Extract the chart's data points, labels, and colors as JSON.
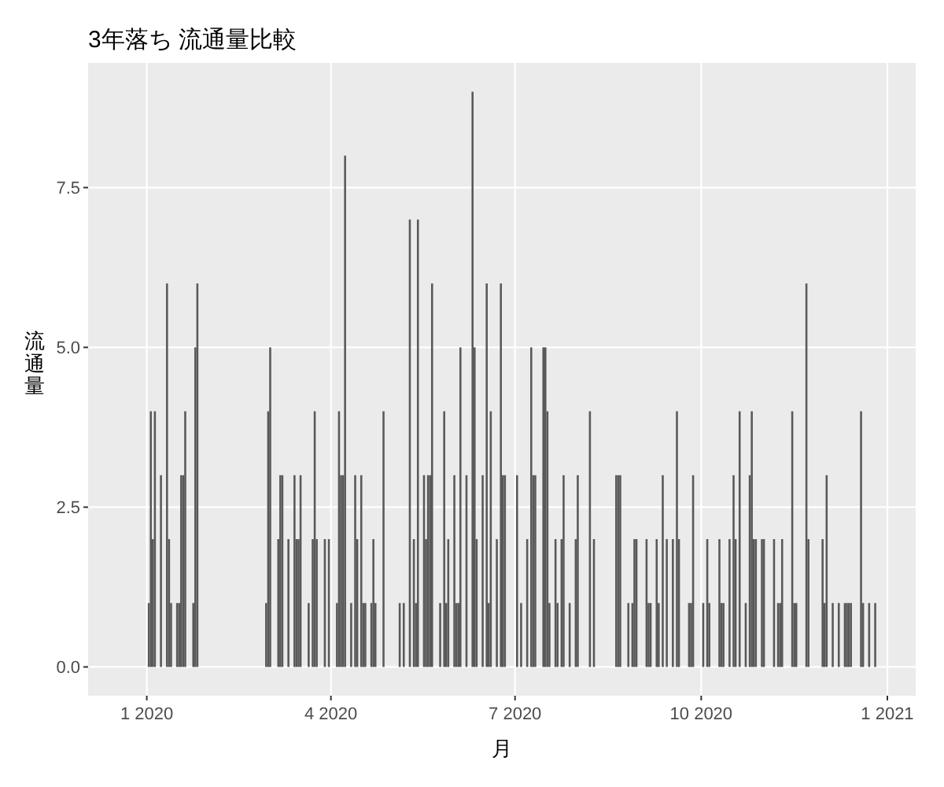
{
  "chart_data": {
    "type": "bar",
    "title": "3年落ち 流通量比較",
    "xlabel": "月",
    "ylabel": "流通量",
    "x": [
      "2020-01-02",
      "2020-01-03",
      "2020-01-04",
      "2020-01-05",
      "2020-01-08",
      "2020-01-11",
      "2020-01-12",
      "2020-01-13",
      "2020-01-16",
      "2020-01-17",
      "2020-01-18",
      "2020-01-19",
      "2020-01-20",
      "2020-01-24",
      "2020-01-25",
      "2020-01-26",
      "2020-02-29",
      "2020-03-01",
      "2020-03-02",
      "2020-03-06",
      "2020-03-07",
      "2020-03-08",
      "2020-03-11",
      "2020-03-14",
      "2020-03-15",
      "2020-03-16",
      "2020-03-17",
      "2020-03-21",
      "2020-03-23",
      "2020-03-24",
      "2020-03-25",
      "2020-03-29",
      "2020-03-31",
      "2020-04-04",
      "2020-04-05",
      "2020-04-06",
      "2020-04-07",
      "2020-04-08",
      "2020-04-11",
      "2020-04-13",
      "2020-04-14",
      "2020-04-16",
      "2020-04-17",
      "2020-04-18",
      "2020-04-21",
      "2020-04-22",
      "2020-04-23",
      "2020-04-27",
      "2020-05-05",
      "2020-05-07",
      "2020-05-10",
      "2020-05-12",
      "2020-05-13",
      "2020-05-14",
      "2020-05-17",
      "2020-05-18",
      "2020-05-19",
      "2020-05-20",
      "2020-05-21",
      "2020-05-25",
      "2020-05-27",
      "2020-05-28",
      "2020-05-29",
      "2020-06-01",
      "2020-06-02",
      "2020-06-03",
      "2020-06-04",
      "2020-06-07",
      "2020-06-10",
      "2020-06-11",
      "2020-06-12",
      "2020-06-15",
      "2020-06-17",
      "2020-06-18",
      "2020-06-19",
      "2020-06-22",
      "2020-06-24",
      "2020-06-25",
      "2020-06-26",
      "2020-07-02",
      "2020-07-04",
      "2020-07-07",
      "2020-07-09",
      "2020-07-10",
      "2020-07-11",
      "2020-07-15",
      "2020-07-16",
      "2020-07-17",
      "2020-07-18",
      "2020-07-21",
      "2020-07-22",
      "2020-07-24",
      "2020-07-25",
      "2020-07-28",
      "2020-07-31",
      "2020-08-01",
      "2020-08-07",
      "2020-08-09",
      "2020-08-20",
      "2020-08-21",
      "2020-08-22",
      "2020-08-26",
      "2020-08-28",
      "2020-08-29",
      "2020-08-30",
      "2020-09-04",
      "2020-09-05",
      "2020-09-06",
      "2020-09-09",
      "2020-09-10",
      "2020-09-12",
      "2020-09-14",
      "2020-09-17",
      "2020-09-19",
      "2020-09-20",
      "2020-09-25",
      "2020-09-26",
      "2020-09-27",
      "2020-10-02",
      "2020-10-04",
      "2020-10-05",
      "2020-10-10",
      "2020-10-11",
      "2020-10-12",
      "2020-10-15",
      "2020-10-17",
      "2020-10-18",
      "2020-10-20",
      "2020-10-23",
      "2020-10-25",
      "2020-10-26",
      "2020-10-27",
      "2020-10-28",
      "2020-10-31",
      "2020-11-01",
      "2020-11-06",
      "2020-11-08",
      "2020-11-09",
      "2020-11-10",
      "2020-11-15",
      "2020-11-16",
      "2020-11-17",
      "2020-11-22",
      "2020-11-23",
      "2020-11-30",
      "2020-12-01",
      "2020-12-02",
      "2020-12-05",
      "2020-12-08",
      "2020-12-11",
      "2020-12-12",
      "2020-12-13",
      "2020-12-14",
      "2020-12-19",
      "2020-12-20",
      "2020-12-23",
      "2020-12-26"
    ],
    "values": [
      1,
      4,
      2,
      4,
      3,
      6,
      2,
      1,
      1,
      1,
      3,
      3,
      4,
      1,
      5,
      6,
      1,
      4,
      5,
      2,
      3,
      3,
      2,
      3,
      2,
      2,
      3,
      1,
      2,
      4,
      2,
      2,
      2,
      1,
      4,
      3,
      3,
      8,
      1,
      3,
      2,
      3,
      1,
      1,
      1,
      2,
      1,
      4,
      1,
      1,
      7,
      2,
      1,
      7,
      3,
      2,
      3,
      3,
      6,
      1,
      4,
      1,
      2,
      3,
      1,
      1,
      5,
      3,
      9,
      5,
      2,
      3,
      6,
      1,
      4,
      2,
      6,
      3,
      3,
      3,
      1,
      2,
      5,
      3,
      3,
      5,
      5,
      4,
      1,
      2,
      1,
      2,
      3,
      1,
      2,
      3,
      4,
      2,
      3,
      3,
      3,
      1,
      1,
      2,
      2,
      2,
      1,
      1,
      2,
      1,
      3,
      2,
      2,
      4,
      2,
      1,
      1,
      3,
      1,
      2,
      1,
      2,
      1,
      1,
      2,
      3,
      2,
      4,
      1,
      3,
      4,
      2,
      2,
      2,
      2,
      2,
      1,
      1,
      2,
      4,
      1,
      1,
      6,
      2,
      2,
      1,
      3,
      1,
      1,
      1,
      1,
      1,
      1,
      4,
      1,
      1,
      1
    ],
    "color": "#595959",
    "xlim": [
      "2019-12-03",
      "2021-01-15"
    ],
    "xticks": [
      {
        "value": "2020-01-01",
        "label": "1 2020"
      },
      {
        "value": "2020-04-01",
        "label": "4 2020"
      },
      {
        "value": "2020-07-01",
        "label": "7 2020"
      },
      {
        "value": "2020-10-01",
        "label": "10 2020"
      },
      {
        "value": "2021-01-01",
        "label": "1 2021"
      }
    ],
    "ylim": [
      -0.45,
      9.45
    ],
    "yticks": [
      {
        "value": 0,
        "label": "0.0"
      },
      {
        "value": 2.5,
        "label": "2.5"
      },
      {
        "value": 5,
        "label": "5.0"
      },
      {
        "value": 7.5,
        "label": "7.5"
      }
    ],
    "grid": true
  }
}
